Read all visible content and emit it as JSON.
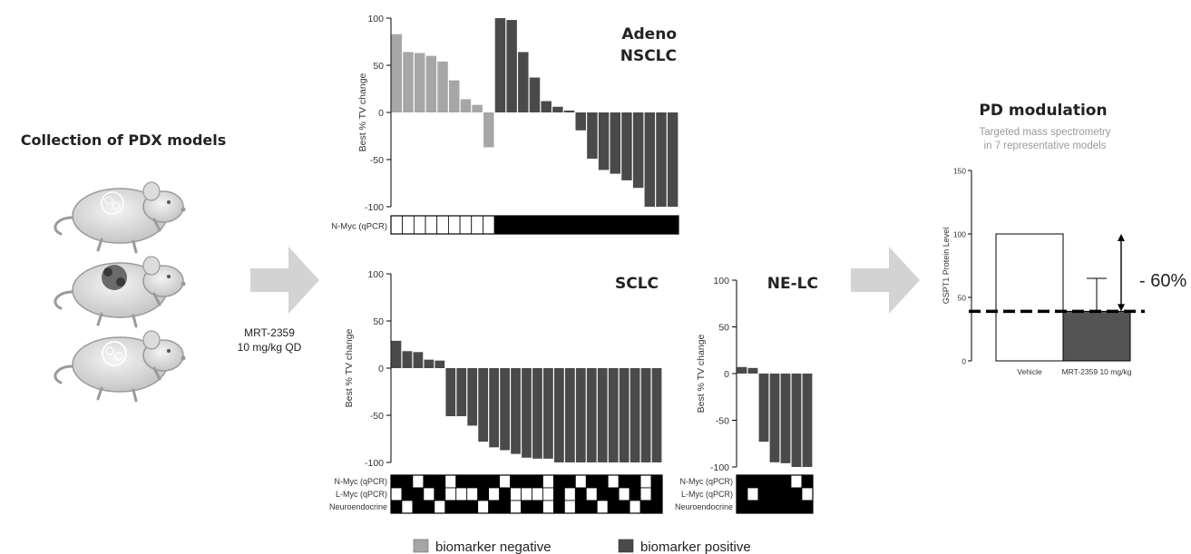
{
  "left_panel": {
    "title": "Collection of PDX models",
    "treatment_line1": "MRT-2359",
    "treatment_line2": "10 mg/kg  QD"
  },
  "legend": {
    "negative": "biomarker negative",
    "positive": "biomarker positive"
  },
  "colors": {
    "negative": "#a6a6a6",
    "positive": "#4a4a4a",
    "arrow": "#d3d3d3",
    "axis": "#000000",
    "pd_bar": "#545454"
  },
  "annotations": {
    "pd_reduction": "- 60%"
  },
  "chart_data": [
    {
      "id": "adeno",
      "type": "bar",
      "title_line1": "Adeno",
      "title_line2": "NSCLC",
      "ylabel": "Best % TV change",
      "ylim": [
        -100,
        100
      ],
      "yticks": [
        "100",
        "50",
        "0",
        "-50",
        "-100"
      ],
      "values": [
        83,
        64,
        63,
        60,
        54,
        34,
        14,
        8,
        -37,
        100,
        98,
        64,
        37,
        12,
        6,
        2,
        -19,
        -49,
        -61,
        -65,
        -72,
        -80,
        -100,
        -100,
        -100
      ],
      "biomarker": [
        "neg",
        "neg",
        "neg",
        "neg",
        "neg",
        "neg",
        "neg",
        "neg",
        "neg",
        "pos",
        "pos",
        "pos",
        "pos",
        "pos",
        "pos",
        "pos",
        "pos",
        "pos",
        "pos",
        "pos",
        "pos",
        "pos",
        "pos",
        "pos",
        "pos"
      ],
      "heatmap_labels": [
        "N-Myc (qPCR)"
      ],
      "heatmap": [
        [
          0,
          0,
          0,
          0,
          0,
          0,
          0,
          0,
          0,
          1,
          1,
          1,
          1,
          1,
          1,
          1,
          1,
          1,
          1,
          1,
          1,
          1,
          1,
          1,
          1
        ]
      ]
    },
    {
      "id": "sclc",
      "type": "bar",
      "title": "SCLC",
      "ylabel": "Best % TV change",
      "ylim": [
        -100,
        100
      ],
      "yticks": [
        "100",
        "50",
        "0",
        "-50",
        "-100"
      ],
      "values": [
        29,
        18,
        17,
        9,
        8,
        -51,
        -51,
        -61,
        -78,
        -84,
        -87,
        -91,
        -95,
        -96,
        -96,
        -100,
        -100,
        -100,
        -100,
        -100,
        -100,
        -100,
        -100,
        -100,
        -100
      ],
      "heatmap_labels": [
        "N-Myc (qPCR)",
        "L-Myc (qPCR)",
        "Neuroendocrine"
      ],
      "heatmap": [
        [
          1,
          1,
          0,
          1,
          1,
          0,
          1,
          1,
          1,
          1,
          0,
          1,
          1,
          1,
          0,
          1,
          1,
          0,
          1,
          1,
          0,
          1,
          1,
          0,
          1
        ],
        [
          0,
          1,
          1,
          0,
          1,
          0,
          0,
          0,
          1,
          0,
          1,
          0,
          0,
          0,
          0,
          1,
          0,
          1,
          0,
          1,
          1,
          0,
          1,
          0,
          1
        ],
        [
          1,
          0,
          1,
          1,
          0,
          1,
          1,
          1,
          0,
          1,
          1,
          0,
          1,
          1,
          0,
          1,
          0,
          1,
          1,
          0,
          1,
          1,
          0,
          1,
          1
        ]
      ]
    },
    {
      "id": "nelc",
      "type": "bar",
      "title": "NE-LC",
      "ylabel": "Best % TV change",
      "ylim": [
        -100,
        100
      ],
      "yticks": [
        "100",
        "50",
        "0",
        "-50",
        "-100"
      ],
      "values": [
        7,
        6,
        -73,
        -95,
        -96,
        -100,
        -100
      ],
      "heatmap_labels": [
        "N-Myc (qPCR)",
        "L-Myc (qPCR)",
        "Neuroendocrine"
      ],
      "heatmap": [
        [
          1,
          1,
          1,
          1,
          1,
          0,
          1
        ],
        [
          1,
          0,
          1,
          1,
          1,
          1,
          0
        ],
        [
          1,
          1,
          1,
          1,
          1,
          1,
          1
        ]
      ]
    },
    {
      "id": "pd",
      "type": "bar",
      "title": "PD modulation",
      "subtitle_line1": "Targeted mass spectrometry",
      "subtitle_line2": "in 7 representative models",
      "ylabel": "GSPT1 Protein Level",
      "ylim": [
        0,
        150
      ],
      "yticks": [
        "150",
        "100",
        "50",
        "0"
      ],
      "categories": [
        "Vehicle",
        "MRT-2359 10 mg/kg"
      ],
      "values": [
        100,
        39
      ],
      "error_upper": [
        null,
        65
      ],
      "reference_line": 39
    }
  ]
}
